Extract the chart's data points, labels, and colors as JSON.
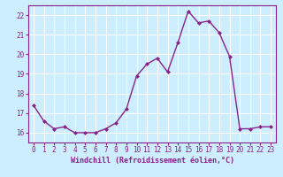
{
  "x": [
    0,
    1,
    2,
    3,
    4,
    5,
    6,
    7,
    8,
    9,
    10,
    11,
    12,
    13,
    14,
    15,
    16,
    17,
    18,
    19,
    20,
    21,
    22,
    23
  ],
  "y": [
    17.4,
    16.6,
    16.2,
    16.3,
    16.0,
    16.0,
    16.0,
    16.2,
    16.5,
    17.2,
    18.9,
    19.5,
    19.8,
    19.1,
    20.6,
    22.2,
    21.6,
    21.7,
    21.1,
    19.9,
    16.2,
    16.2,
    16.3,
    16.3
  ],
  "line_color": "#882288",
  "marker": "D",
  "marker_size": 2.0,
  "bg_color": "#cceeff",
  "grid_color": "#ffffff",
  "xlabel": "Windchill (Refroidissement éolien,°C)",
  "xlabel_color": "#882288",
  "tick_color": "#882288",
  "axis_color": "#882288",
  "ylim": [
    15.5,
    22.5
  ],
  "yticks": [
    16,
    17,
    18,
    19,
    20,
    21,
    22
  ],
  "xticks": [
    0,
    1,
    2,
    3,
    4,
    5,
    6,
    7,
    8,
    9,
    10,
    11,
    12,
    13,
    14,
    15,
    16,
    17,
    18,
    19,
    20,
    21,
    22,
    23
  ],
  "linewidth": 1.0,
  "tick_fontsize": 5.5,
  "xlabel_fontsize": 6.0
}
